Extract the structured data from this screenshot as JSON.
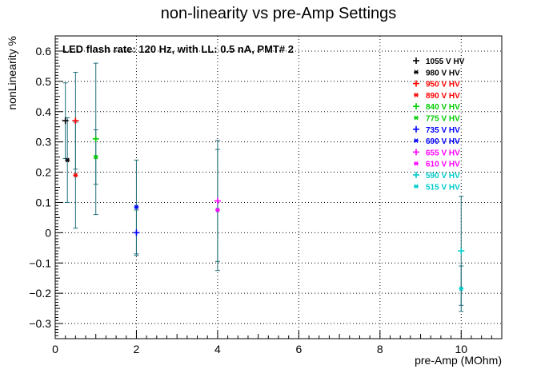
{
  "chart_data": {
    "type": "scatter",
    "title": "non-linearity vs pre-Amp Settings",
    "annotation": "LED flash rate: 120 Hz, with LL: 0.5 nA, PMT# 2",
    "xlabel": "pre-Amp (MOhm)",
    "ylabel": "nonLinearity %",
    "xlim": [
      0,
      11
    ],
    "ylim": [
      -0.35,
      0.65
    ],
    "xticks": [
      0,
      2,
      4,
      6,
      8,
      10
    ],
    "yticks": [
      -0.3,
      -0.2,
      -0.1,
      0,
      0.1,
      0.2,
      0.3,
      0.4,
      0.5,
      0.6
    ],
    "grid": true,
    "legend_position": "top-right",
    "series": [
      {
        "name": "1055 V HV",
        "color": "#000000",
        "marker": "+",
        "x": [
          0.25
        ],
        "y": [
          0.37
        ],
        "yerr": [
          0.125
        ]
      },
      {
        "name": "980 V HV",
        "color": "#000000",
        "marker": "*",
        "x": [
          0.3
        ],
        "y": [
          0.24
        ],
        "yerr": [
          0.14
        ]
      },
      {
        "name": "950 V HV",
        "color": "#ff0000",
        "marker": "+",
        "x": [
          0.5
        ],
        "y": [
          0.37
        ],
        "yerr": [
          0.16
        ]
      },
      {
        "name": "890 V HV",
        "color": "#ff0000",
        "marker": "*",
        "x": [
          0.5
        ],
        "y": [
          0.19
        ],
        "yerr": [
          0.175
        ]
      },
      {
        "name": "840 V HV",
        "color": "#00cc00",
        "marker": "+",
        "x": [
          1.0
        ],
        "y": [
          0.31
        ],
        "yerr": [
          0.25
        ]
      },
      {
        "name": "775 V HV",
        "color": "#00cc00",
        "marker": "*",
        "x": [
          1.0
        ],
        "y": [
          0.25
        ],
        "yerr": [
          0.09
        ]
      },
      {
        "name": "735 V HV",
        "color": "#0000ff",
        "marker": "+",
        "x": [
          2.0
        ],
        "y": [
          0.0
        ],
        "yerr": [
          0.075
        ]
      },
      {
        "name": "690 V HV",
        "color": "#0000ff",
        "marker": "*",
        "x": [
          2.0
        ],
        "y": [
          0.085
        ],
        "yerr": [
          0.155
        ]
      },
      {
        "name": "655 V HV",
        "color": "#ff00ff",
        "marker": "+",
        "x": [
          4.0
        ],
        "y": [
          0.105
        ],
        "yerr": [
          0.2
        ]
      },
      {
        "name": "610 V HV",
        "color": "#ff00ff",
        "marker": "*",
        "x": [
          4.0
        ],
        "y": [
          0.075
        ],
        "yerr": [
          0.2
        ]
      },
      {
        "name": "590 V HV",
        "color": "#00cccc",
        "marker": "+",
        "x": [
          10.0
        ],
        "y": [
          -0.06
        ],
        "yerr": [
          0.18
        ]
      },
      {
        "name": "515 V HV",
        "color": "#00cccc",
        "marker": "*",
        "x": [
          10.0
        ],
        "y": [
          -0.185
        ],
        "yerr": [
          0.075
        ]
      }
    ]
  }
}
